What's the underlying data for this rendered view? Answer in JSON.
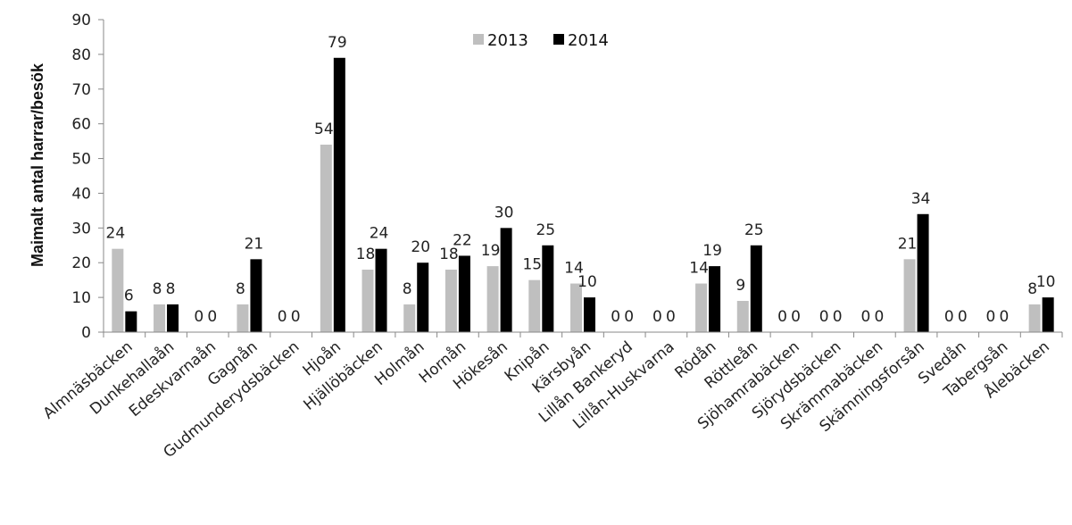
{
  "chart_data": {
    "type": "bar",
    "ylabel": "Maimalt antal harrar/besök",
    "xlabel": "",
    "ylim": [
      0,
      90
    ],
    "yticks": [
      0,
      10,
      20,
      30,
      40,
      50,
      60,
      70,
      80,
      90
    ],
    "legend_position": "top-center",
    "categories": [
      "Almnäsbäcken",
      "Dunkehallaån",
      "Edeskvarnaån",
      "Gagnån",
      "Gudmunderydsbäcken",
      "Hjoån",
      "Hjällöbäcken",
      "Holmån",
      "Hornån",
      "Hökesån",
      "Knipån",
      "Kärsbyån",
      "Lillån Bankeryd",
      "Lillån-Huskvarna",
      "Rödån",
      "Röttleån",
      "Sjöhamrabäcken",
      "Sjörydsbäcken",
      "Skrämmabäcken",
      "Skämningsforsån",
      "Svedån",
      "Tabergsån",
      "Ålebäcken"
    ],
    "series": [
      {
        "name": "2013",
        "color": "#bfbfbf",
        "values": [
          24,
          8,
          0,
          8,
          0,
          54,
          18,
          8,
          18,
          19,
          15,
          14,
          0,
          0,
          14,
          9,
          0,
          0,
          0,
          21,
          0,
          0,
          8
        ]
      },
      {
        "name": "2014",
        "color": "#000000",
        "values": [
          6,
          8,
          0,
          21,
          0,
          79,
          24,
          20,
          22,
          30,
          25,
          10,
          0,
          0,
          19,
          25,
          0,
          0,
          0,
          34,
          0,
          0,
          10
        ]
      }
    ]
  }
}
